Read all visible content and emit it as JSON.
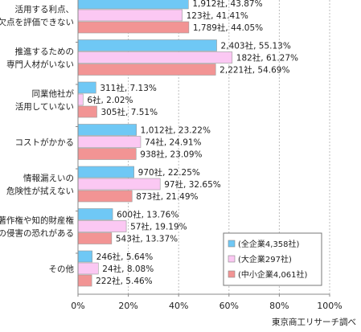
{
  "chart_data": {
    "type": "bar",
    "orientation": "horizontal",
    "xlim": [
      0,
      100
    ],
    "xticks": [
      "0%",
      "20%",
      "40%",
      "60%",
      "80%",
      "100%"
    ],
    "categories": [
      [
        "活用する利点、",
        "欠点を評価できない"
      ],
      [
        "推進するための",
        "専門人材がいない"
      ],
      [
        "同業他社が",
        "活用していない"
      ],
      [
        "コストがかかる"
      ],
      [
        "情報漏えいの",
        "危険性が拭えない"
      ],
      [
        "著作権や知的財産権",
        "の侵害の恐れがある"
      ],
      [
        "その他"
      ]
    ],
    "series": [
      {
        "name": "(全企業4,358社)",
        "color": "#6fc8f5",
        "values": [
          43.87,
          55.13,
          7.13,
          23.22,
          22.25,
          13.76,
          5.64
        ],
        "labels": [
          "1,912社, 43.87%",
          "2,403社, 55.13%",
          "311社, 7.13%",
          "1,012社, 23.22%",
          "970社, 22.25%",
          "600社, 13.76%",
          "246社, 5.64%"
        ]
      },
      {
        "name": "(大企業297社)",
        "color": "#fbc8f3",
        "values": [
          41.41,
          61.27,
          2.02,
          24.91,
          32.65,
          19.19,
          8.08
        ],
        "labels": [
          "123社, 41.41%",
          "182社, 61.27%",
          "6社, 2.02%",
          "74社, 24.91%",
          "97社, 32.65%",
          "57社, 19.19%",
          "24社, 8.08%"
        ]
      },
      {
        "name": "(中小企業4,061社)",
        "color": "#f29494",
        "values": [
          44.05,
          54.69,
          7.51,
          23.09,
          21.49,
          13.37,
          5.46
        ],
        "labels": [
          "1,789社, 44.05%",
          "2,221社, 54.69%",
          "305社, 7.51%",
          "938社, 23.09%",
          "873社, 21.49%",
          "543社, 13.37%",
          "222社, 5.46%"
        ]
      }
    ],
    "legend_position": "bottom-right",
    "source": "東京商工リサーチ調べ"
  }
}
